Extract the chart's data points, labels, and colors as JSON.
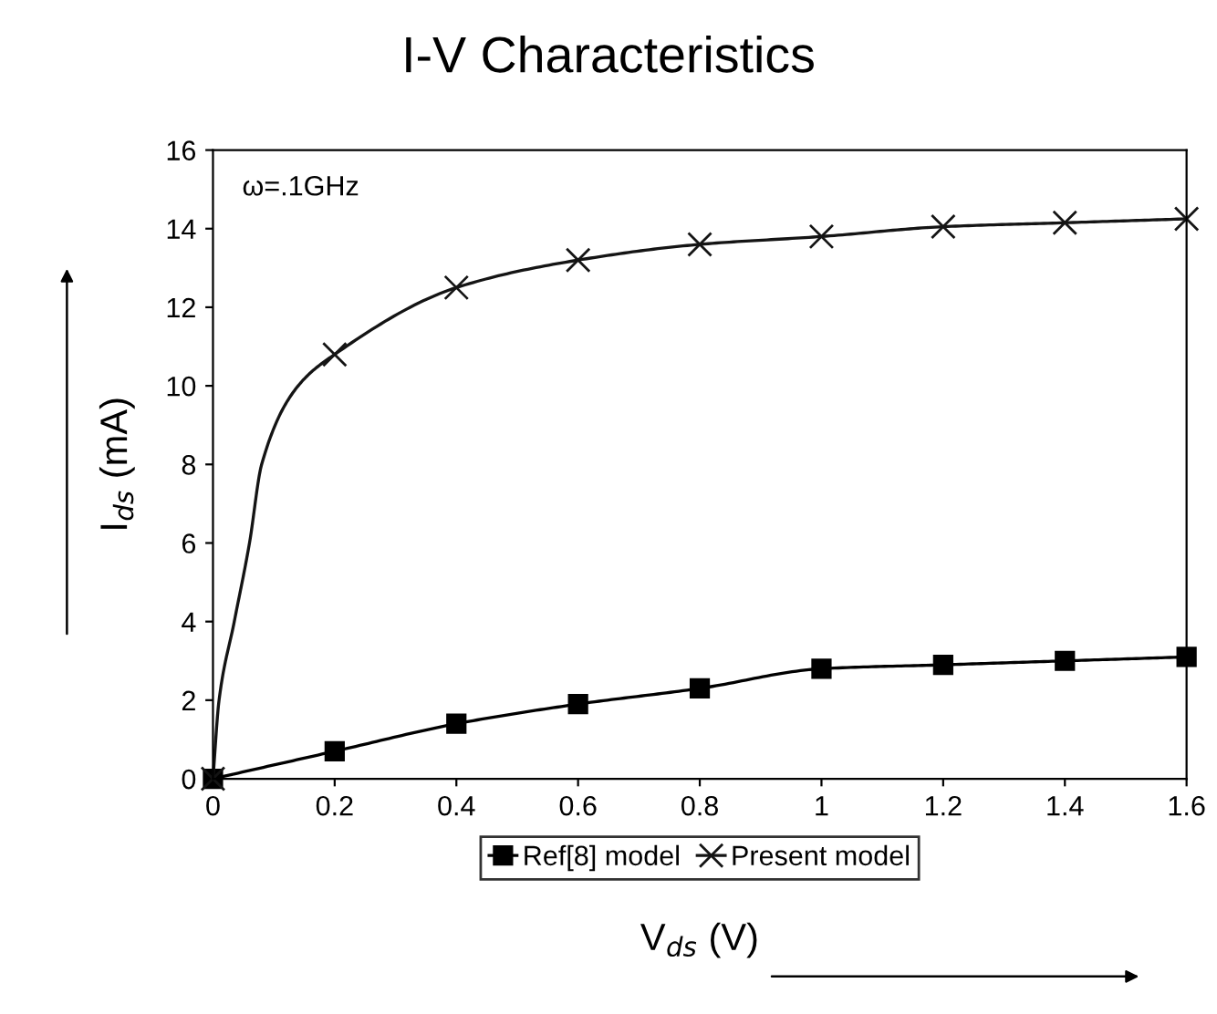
{
  "chart_data": {
    "type": "line",
    "title": "I-V Characteristics",
    "xlabel": "V$_{ds}$ (V)",
    "ylabel": "I$_{ds}$ (mA)",
    "x": [
      0,
      0.2,
      0.4,
      0.6,
      0.8,
      1,
      1.2,
      1.4,
      1.6
    ],
    "series": [
      {
        "name": "Ref[8] model",
        "color": "#000000",
        "marker": "square",
        "values": [
          0,
          0.7,
          1.4,
          1.9,
          2.3,
          2.8,
          2.9,
          3.0,
          3.1
        ]
      },
      {
        "name": "Present model",
        "color": "#141414",
        "marker": "cross",
        "x": [
          0,
          0.01,
          0.035,
          0.06,
          0.08,
          0.14,
          0.2,
          0.4,
          0.6,
          0.8,
          1,
          1.2,
          1.4,
          1.6
        ],
        "values": [
          0,
          2,
          4,
          6,
          8,
          10,
          10.8,
          12.5,
          13.2,
          13.6,
          13.8,
          14.05,
          14.15,
          14.25
        ]
      }
    ],
    "xlim": [
      0,
      1.6
    ],
    "xticks": [
      0,
      0.2,
      0.4,
      0.6,
      0.8,
      1,
      1.2,
      1.4,
      1.6
    ],
    "ylim": [
      0,
      16
    ],
    "yticks": [
      0,
      2,
      4,
      6,
      8,
      10,
      12,
      14,
      16
    ],
    "annotations": [
      "ω=.1GHz"
    ],
    "legend": "bottom",
    "grid": false,
    "line_style": "solid"
  }
}
